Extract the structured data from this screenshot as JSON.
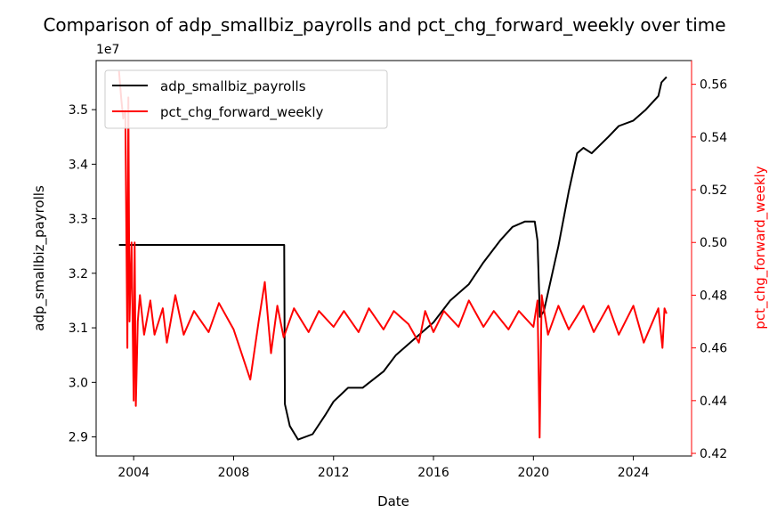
{
  "chart_data": {
    "type": "line",
    "title": "Comparison of adp_smallbiz_payrolls and pct_chg_forward_weekly over time",
    "xlabel": "Date",
    "ylabel_left": "adp_smallbiz_payrolls",
    "ylabel_right": "pct_chg_forward_weekly",
    "left_offset_label": "1e7",
    "xlim": [
      "2002-07-01",
      "2026-05-01"
    ],
    "ylim_left": [
      2.865,
      3.59
    ],
    "ylim_right": [
      0.419,
      0.569
    ],
    "x_ticks": [
      "2004",
      "2008",
      "2012",
      "2016",
      "2020",
      "2024"
    ],
    "y_ticks_left": [
      "2.9",
      "3.0",
      "3.1",
      "3.2",
      "3.3",
      "3.4",
      "3.5"
    ],
    "y_ticks_right": [
      "0.42",
      "0.44",
      "0.46",
      "0.48",
      "0.50",
      "0.52",
      "0.54",
      "0.56"
    ],
    "legend": "upper-left",
    "grid": false,
    "series": [
      {
        "name": "adp_smallbiz_payrolls",
        "axis": "left",
        "color": "#000000",
        "unit_multiplier": "1e7",
        "points": [
          [
            "2003-06-01",
            3.252
          ],
          [
            "2010-01-10",
            3.252
          ],
          [
            "2010-01-20",
            2.96
          ],
          [
            "2010-04-01",
            2.92
          ],
          [
            "2010-08-01",
            2.895
          ],
          [
            "2011-03-01",
            2.905
          ],
          [
            "2011-09-01",
            2.94
          ],
          [
            "2012-01-01",
            2.965
          ],
          [
            "2012-08-01",
            2.99
          ],
          [
            "2013-03-01",
            2.99
          ],
          [
            "2014-01-01",
            3.02
          ],
          [
            "2014-07-01",
            3.05
          ],
          [
            "2015-04-01",
            3.08
          ],
          [
            "2016-01-01",
            3.11
          ],
          [
            "2016-09-01",
            3.15
          ],
          [
            "2017-06-01",
            3.18
          ],
          [
            "2018-01-01",
            3.22
          ],
          [
            "2018-09-01",
            3.26
          ],
          [
            "2019-03-01",
            3.285
          ],
          [
            "2019-09-01",
            3.295
          ],
          [
            "2020-01-20",
            3.295
          ],
          [
            "2020-03-01",
            3.26
          ],
          [
            "2020-04-05",
            3.12
          ],
          [
            "2020-06-01",
            3.13
          ],
          [
            "2021-01-01",
            3.25
          ],
          [
            "2021-06-01",
            3.35
          ],
          [
            "2021-10-01",
            3.42
          ],
          [
            "2022-01-01",
            3.43
          ],
          [
            "2022-05-01",
            3.42
          ],
          [
            "2023-01-01",
            3.45
          ],
          [
            "2023-06-01",
            3.47
          ],
          [
            "2024-01-01",
            3.48
          ],
          [
            "2024-07-01",
            3.5
          ],
          [
            "2025-01-01",
            3.525
          ],
          [
            "2025-02-15",
            3.55
          ],
          [
            "2025-05-01",
            3.56
          ]
        ]
      },
      {
        "name": "pct_chg_forward_weekly",
        "axis": "right",
        "color": "#ff0000",
        "points": [
          [
            "2003-06-01",
            0.565
          ],
          [
            "2003-07-01",
            0.555
          ],
          [
            "2003-08-01",
            0.547
          ],
          [
            "2003-09-01",
            0.55
          ],
          [
            "2003-10-01",
            0.46
          ],
          [
            "2003-10-15",
            0.555
          ],
          [
            "2003-11-01",
            0.47
          ],
          [
            "2003-12-01",
            0.5
          ],
          [
            "2004-01-01",
            0.44
          ],
          [
            "2004-01-15",
            0.5
          ],
          [
            "2004-02-01",
            0.438
          ],
          [
            "2004-03-01",
            0.47
          ],
          [
            "2004-04-01",
            0.48
          ],
          [
            "2004-06-01",
            0.465
          ],
          [
            "2004-09-01",
            0.478
          ],
          [
            "2004-11-01",
            0.465
          ],
          [
            "2005-01-01",
            0.47
          ],
          [
            "2005-03-01",
            0.475
          ],
          [
            "2005-05-01",
            0.462
          ],
          [
            "2005-09-01",
            0.48
          ],
          [
            "2006-01-01",
            0.465
          ],
          [
            "2006-06-01",
            0.474
          ],
          [
            "2007-01-01",
            0.466
          ],
          [
            "2007-06-01",
            0.477
          ],
          [
            "2008-01-01",
            0.467
          ],
          [
            "2008-09-01",
            0.448
          ],
          [
            "2009-01-01",
            0.47
          ],
          [
            "2009-04-01",
            0.485
          ],
          [
            "2009-07-01",
            0.458
          ],
          [
            "2009-10-01",
            0.476
          ],
          [
            "2010-01-01",
            0.464
          ],
          [
            "2010-06-01",
            0.475
          ],
          [
            "2011-01-01",
            0.466
          ],
          [
            "2011-06-01",
            0.474
          ],
          [
            "2012-01-01",
            0.468
          ],
          [
            "2012-06-01",
            0.474
          ],
          [
            "2013-01-01",
            0.466
          ],
          [
            "2013-06-01",
            0.475
          ],
          [
            "2014-01-01",
            0.467
          ],
          [
            "2014-06-01",
            0.474
          ],
          [
            "2015-01-01",
            0.469
          ],
          [
            "2015-06-01",
            0.462
          ],
          [
            "2015-09-01",
            0.474
          ],
          [
            "2016-01-01",
            0.466
          ],
          [
            "2016-06-01",
            0.474
          ],
          [
            "2017-01-01",
            0.468
          ],
          [
            "2017-06-01",
            0.478
          ],
          [
            "2018-01-01",
            0.468
          ],
          [
            "2018-06-01",
            0.474
          ],
          [
            "2019-01-01",
            0.467
          ],
          [
            "2019-06-01",
            0.474
          ],
          [
            "2020-01-01",
            0.468
          ],
          [
            "2020-03-01",
            0.478
          ],
          [
            "2020-04-01",
            0.426
          ],
          [
            "2020-05-01",
            0.48
          ],
          [
            "2020-08-01",
            0.465
          ],
          [
            "2021-01-01",
            0.476
          ],
          [
            "2021-06-01",
            0.467
          ],
          [
            "2022-01-01",
            0.476
          ],
          [
            "2022-06-01",
            0.466
          ],
          [
            "2023-01-01",
            0.476
          ],
          [
            "2023-06-01",
            0.465
          ],
          [
            "2024-01-01",
            0.476
          ],
          [
            "2024-06-01",
            0.462
          ],
          [
            "2025-01-01",
            0.475
          ],
          [
            "2025-03-01",
            0.46
          ],
          [
            "2025-04-01",
            0.475
          ],
          [
            "2025-05-01",
            0.473
          ]
        ]
      }
    ]
  }
}
